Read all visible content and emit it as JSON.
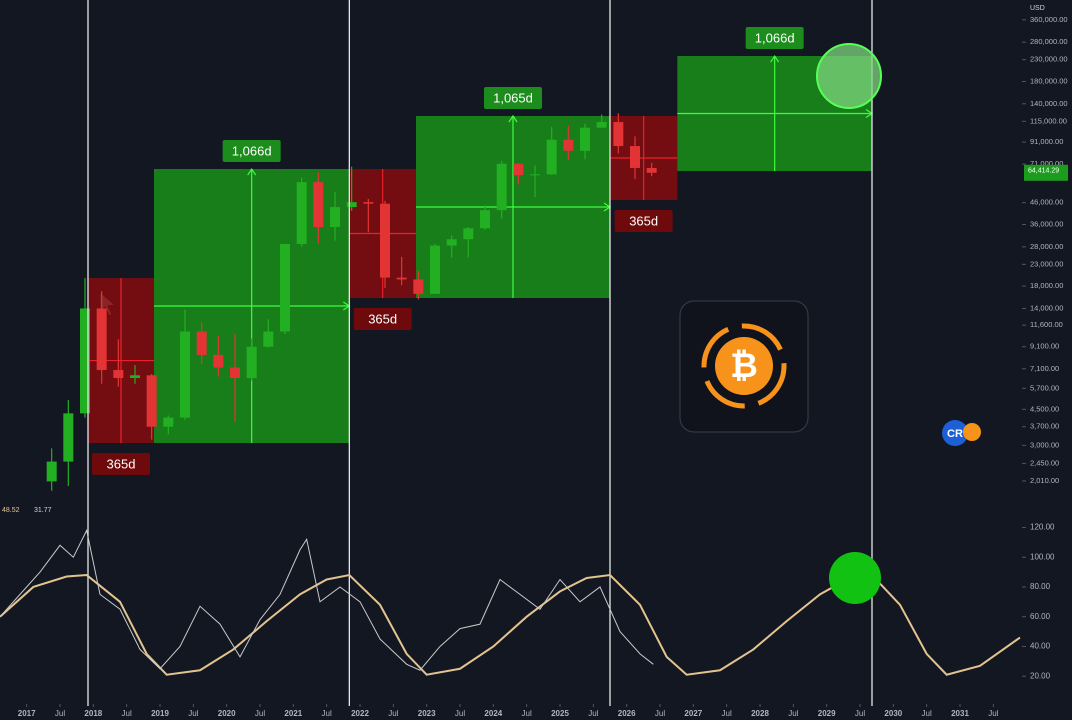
{
  "chart_data": [
    {
      "type": "candlestick",
      "currency": "USD",
      "log_scale": true,
      "up_color": "#22b022",
      "down_color": "#e23434",
      "xlim": [
        2016.6,
        2031.9
      ],
      "ylim": [
        1450,
        450000
      ],
      "yticks": [
        {
          "value": 360000,
          "label": "360,000.00"
        },
        {
          "value": 280000,
          "label": "280,000.00"
        },
        {
          "value": 230000,
          "label": "230,000.00"
        },
        {
          "value": 180000,
          "label": "180,000.00"
        },
        {
          "value": 140000,
          "label": "140,000.00"
        },
        {
          "value": 115000,
          "label": "115,000.00"
        },
        {
          "value": 91000,
          "label": "91,000.00"
        },
        {
          "value": 71000,
          "label": "71,000.00"
        },
        {
          "value": 46000,
          "label": "46,000.00"
        },
        {
          "value": 36000,
          "label": "36,000.00"
        },
        {
          "value": 28000,
          "label": "28,000.00"
        },
        {
          "value": 23000,
          "label": "23,000.00"
        },
        {
          "value": 18000,
          "label": "18,000.00"
        },
        {
          "value": 14000,
          "label": "14,000.00"
        },
        {
          "value": 11600,
          "label": "11,600.00"
        },
        {
          "value": 9100,
          "label": "9,100.00"
        },
        {
          "value": 7100,
          "label": "7,100.00"
        },
        {
          "value": 5700,
          "label": "5,700.00"
        },
        {
          "value": 4500,
          "label": "4,500.00"
        },
        {
          "value": 3700,
          "label": "3,700.00"
        },
        {
          "value": 3000,
          "label": "3,000.00"
        },
        {
          "value": 2450,
          "label": "2,450.00"
        },
        {
          "value": 2010,
          "label": "2,010.00"
        }
      ],
      "last_price": {
        "value": 64414.29,
        "label": "64,414.29"
      },
      "x": [
        2017.375,
        2017.625,
        2017.875,
        2018.125,
        2018.375,
        2018.625,
        2018.875,
        2019.125,
        2019.375,
        2019.625,
        2019.875,
        2020.125,
        2020.375,
        2020.625,
        2020.875,
        2021.125,
        2021.375,
        2021.625,
        2021.875,
        2022.125,
        2022.375,
        2022.625,
        2022.875,
        2023.125,
        2023.375,
        2023.625,
        2023.875,
        2024.125,
        2024.375,
        2024.625,
        2024.875,
        2025.125,
        2025.375,
        2025.625,
        2025.875,
        2026.125,
        2026.375
      ],
      "open": [
        2000,
        2500,
        4300,
        14000,
        7000,
        6400,
        6600,
        3700,
        4100,
        10800,
        8300,
        7200,
        6400,
        9100,
        10800,
        28900,
        58000,
        35000,
        43800,
        46300,
        45500,
        19800,
        19400,
        16500,
        28400,
        30500,
        34500,
        42300,
        71300,
        62700,
        63300,
        93400,
        82500,
        107000,
        114000,
        87000,
        68000
      ],
      "high": [
        2900,
        5000,
        19700,
        17000,
        9900,
        7400,
        6700,
        4200,
        13800,
        12000,
        10300,
        10500,
        10000,
        12400,
        29000,
        61000,
        64800,
        52000,
        69000,
        48000,
        47000,
        25000,
        21400,
        29000,
        31800,
        35000,
        44700,
        73800,
        72000,
        70000,
        108000,
        109000,
        112000,
        124000,
        126000,
        97000,
        72000
      ],
      "low": [
        1800,
        1900,
        4100,
        6000,
        5800,
        6000,
        3200,
        3400,
        4000,
        7500,
        6500,
        3900,
        6200,
        9000,
        10500,
        28000,
        29000,
        30000,
        42000,
        33000,
        17600,
        18200,
        15500,
        16500,
        24800,
        24900,
        34000,
        38500,
        56500,
        49000,
        63000,
        74500,
        75000,
        107000,
        80000,
        60000,
        62000
      ],
      "close": [
        2500,
        4300,
        14000,
        7000,
        6400,
        6600,
        3700,
        4100,
        10800,
        8300,
        7200,
        6400,
        9100,
        10800,
        28900,
        58000,
        35000,
        43800,
        46300,
        45500,
        19800,
        19400,
        16500,
        28400,
        30500,
        34500,
        42300,
        71300,
        62700,
        63300,
        93400,
        82500,
        107000,
        114000,
        87000,
        68000,
        64414.29
      ],
      "cycle_lines": [
        2017.92,
        2021.84,
        2025.75,
        2029.68
      ],
      "boxes": [
        {
          "x": [
            2017.92,
            2018.91
          ],
          "y": [
            3080,
            19700
          ],
          "color": "#7e0c10",
          "label": "365d"
        },
        {
          "x": [
            2018.91,
            2021.84
          ],
          "y": [
            3080,
            67200
          ],
          "color": "#1a8a1a",
          "label": "1,066d"
        },
        {
          "x": [
            2021.84,
            2022.84
          ],
          "y": [
            15740,
            67200
          ],
          "color": "#7e0c10",
          "label": "365d"
        },
        {
          "x": [
            2022.84,
            2025.75
          ],
          "y": [
            15740,
            122000
          ],
          "color": "#1a8a1a",
          "label": "1,065d"
        },
        {
          "x": [
            2025.75,
            2026.76
          ],
          "y": [
            47400,
            122000
          ],
          "color": "#7e0c10",
          "label": "365d"
        },
        {
          "x": [
            2026.76,
            2029.68
          ],
          "y": [
            65700,
            239600
          ],
          "color": "#1a8a1a",
          "label": "1,066d"
        }
      ],
      "logo_symbol": "₿",
      "brand": "CR"
    },
    {
      "type": "line",
      "xlim": [
        2016.6,
        2031.9
      ],
      "ylim": [
        4,
        125
      ],
      "yticks": [
        {
          "value": 120,
          "label": "120.00"
        },
        {
          "value": 100,
          "label": "100.00"
        },
        {
          "value": 80,
          "label": "80.00"
        },
        {
          "value": 60,
          "label": "60.00"
        },
        {
          "value": 40,
          "label": "40.00"
        },
        {
          "value": 20,
          "label": "20.00"
        }
      ],
      "readout": [
        48.52,
        31.77
      ],
      "xticks": [
        2017,
        {
          "value": 2017.5,
          "label": "Jul"
        },
        2018,
        {
          "value": 2018.5,
          "label": "Jul"
        },
        2019,
        {
          "value": 2019.5,
          "label": "Jul"
        },
        2020,
        {
          "value": 2020.5,
          "label": "Jul"
        },
        2021,
        {
          "value": 2021.5,
          "label": "Jul"
        },
        2022,
        {
          "value": 2022.5,
          "label": "Jul"
        },
        2023,
        {
          "value": 2023.5,
          "label": "Jul"
        },
        2024,
        {
          "value": 2024.5,
          "label": "Jul"
        },
        2025,
        {
          "value": 2025.5,
          "label": "Jul"
        },
        2026,
        {
          "value": 2026.5,
          "label": "Jul"
        },
        2027,
        {
          "value": 2027.5,
          "label": "Jul"
        },
        2028,
        {
          "value": 2028.5,
          "label": "Jul"
        },
        2029,
        {
          "value": 2029.5,
          "label": "Jul"
        },
        2030,
        {
          "value": 2030.5,
          "label": "Jul"
        },
        2031,
        {
          "value": 2031.5,
          "label": "Jul"
        }
      ],
      "series": [
        {
          "color": "#c9c9c9",
          "x": [
            2016.6,
            2016.9,
            2017.2,
            2017.5,
            2017.7,
            2017.9,
            2018.1,
            2018.4,
            2018.7,
            2019.0,
            2019.3,
            2019.6,
            2019.9,
            2020.2,
            2020.5,
            2020.8,
            2021.1,
            2021.2,
            2021.4,
            2021.7,
            2022.0,
            2022.3,
            2022.7,
            2022.9,
            2023.2,
            2023.5,
            2023.8,
            2024.1,
            2024.4,
            2024.7,
            2025.0,
            2025.3,
            2025.6,
            2025.9,
            2026.2,
            2026.4
          ],
          "values": [
            60,
            75,
            90,
            108,
            100,
            118,
            75,
            65,
            38,
            25,
            40,
            67,
            55,
            33,
            58,
            75,
            105,
            112,
            70,
            80,
            70,
            45,
            28,
            24,
            40,
            52,
            55,
            85,
            75,
            65,
            85,
            70,
            80,
            50,
            35,
            28
          ]
        },
        {
          "color": "#e3c48e",
          "x": [
            2016.6,
            2017.1,
            2017.6,
            2017.9,
            2018.4,
            2018.8,
            2019.1,
            2019.6,
            2020.1,
            2020.6,
            2021.1,
            2021.5,
            2021.84,
            2022.3,
            2022.7,
            2023.0,
            2023.5,
            2024.0,
            2024.5,
            2025.0,
            2025.4,
            2025.75,
            2026.2,
            2026.6,
            2026.9,
            2027.4,
            2027.9,
            2028.4,
            2028.9,
            2029.3,
            2029.68,
            2030.1,
            2030.5,
            2030.8,
            2031.3,
            2031.9
          ],
          "values": [
            60,
            80,
            87,
            88,
            70,
            35,
            21,
            24,
            38,
            57,
            75,
            85,
            88,
            68,
            35,
            21,
            25,
            40,
            60,
            77,
            86,
            88,
            68,
            33,
            21,
            24,
            38,
            57,
            75,
            85,
            88,
            68,
            35,
            21,
            27,
            46
          ]
        }
      ]
    }
  ]
}
